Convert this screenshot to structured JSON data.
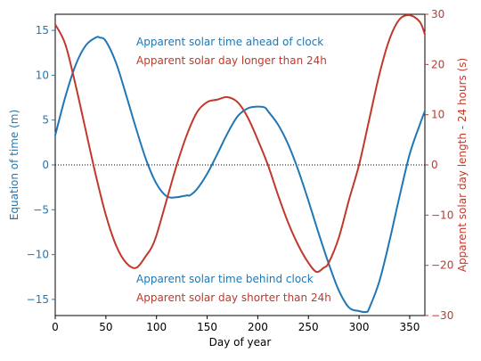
{
  "chart_data": {
    "type": "line",
    "xlabel": "Day of year",
    "ylabel_left": "Equation of time (m)",
    "ylabel_right": "Apparent solar day length - 24 hours (s)",
    "xlim": [
      0,
      365
    ],
    "ylim_left": [
      -16.8,
      16.8
    ],
    "ylim_right": [
      -30,
      30
    ],
    "xticks": [
      0,
      50,
      100,
      150,
      200,
      250,
      300,
      350
    ],
    "yticks_left": [
      15,
      10,
      5,
      0,
      -5,
      -10,
      -15
    ],
    "yticks_right": [
      30,
      20,
      10,
      0,
      -10,
      -20,
      -30
    ],
    "zero_line": "dotted",
    "grid": false,
    "colors": {
      "equation_of_time": "#1f77b4",
      "day_length": "#c0392b",
      "zero_line": "#000000"
    },
    "series": [
      {
        "axis": "left",
        "x": [
          0,
          10,
          20,
          30,
          40,
          44,
          50,
          60,
          70,
          80,
          90,
          100,
          110,
          120,
          130,
          133,
          140,
          150,
          160,
          170,
          180,
          190,
          200,
          207,
          210,
          220,
          230,
          240,
          250,
          260,
          270,
          280,
          290,
          300,
          307,
          310,
          320,
          330,
          340,
          350,
          360,
          365
        ],
        "values": [
          3.3,
          7.6,
          11.1,
          13.3,
          14.2,
          14.2,
          13.8,
          11.4,
          7.8,
          4.0,
          0.5,
          -2.1,
          -3.5,
          -3.6,
          -3.4,
          -3.4,
          -2.7,
          -1.0,
          1.2,
          3.5,
          5.4,
          6.3,
          6.5,
          6.4,
          6.0,
          4.5,
          2.3,
          -0.6,
          -4.0,
          -7.6,
          -11.0,
          -14.0,
          -15.9,
          -16.3,
          -16.4,
          -16.0,
          -13.0,
          -8.5,
          -3.5,
          1.2,
          4.5,
          6.0
        ]
      },
      {
        "axis": "right",
        "x": [
          0,
          10,
          20,
          30,
          40,
          50,
          60,
          70,
          80,
          90,
          95,
          100,
          110,
          120,
          130,
          140,
          150,
          160,
          170,
          180,
          190,
          200,
          210,
          220,
          230,
          240,
          250,
          258,
          265,
          270,
          280,
          290,
          300,
          310,
          320,
          330,
          340,
          350,
          360,
          365
        ],
        "values": [
          28.0,
          24.0,
          16.0,
          7.0,
          -2.0,
          -10.0,
          -16.0,
          -19.5,
          -20.5,
          -18.0,
          -16.5,
          -14.0,
          -7.0,
          0.0,
          6.0,
          10.5,
          12.5,
          13.0,
          13.5,
          12.5,
          9.5,
          5.0,
          0.0,
          -6.0,
          -11.5,
          -16.0,
          -19.5,
          -21.3,
          -20.5,
          -19.5,
          -14.5,
          -7.0,
          0.0,
          9.0,
          18.0,
          25.0,
          29.0,
          29.8,
          28.5,
          26.0
        ]
      }
    ],
    "annotations": {
      "eot_ahead": "Apparent solar time ahead of clock",
      "day_longer": "Apparent solar day longer than 24h",
      "eot_behind": "Apparent solar time behind clock",
      "day_shorter": "Apparent solar day shorter than 24h"
    }
  }
}
